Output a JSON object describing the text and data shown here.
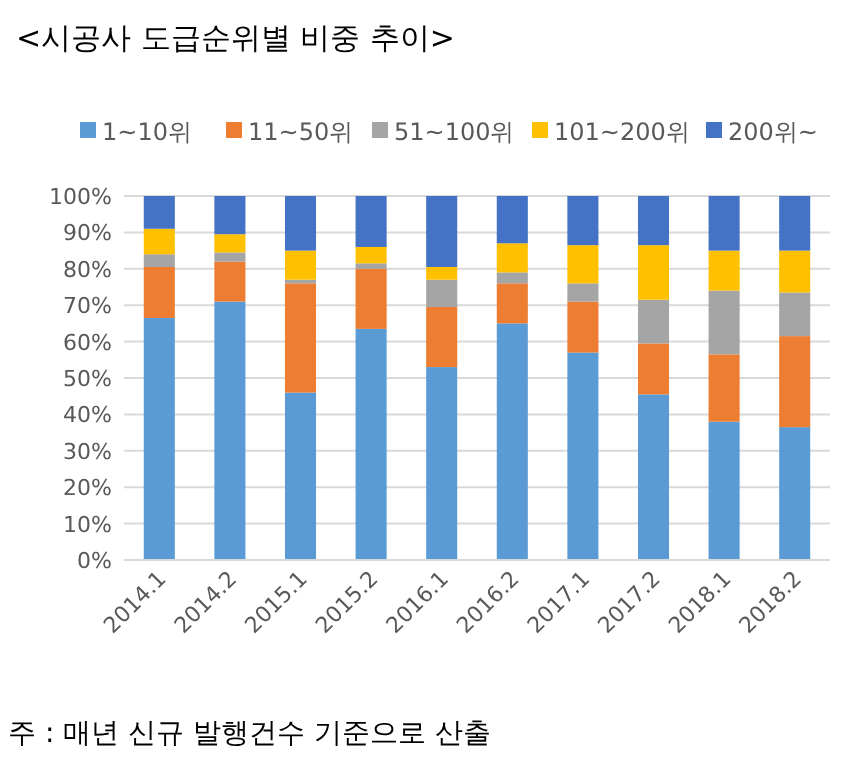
{
  "chart_data": {
    "type": "bar",
    "stacked": true,
    "title": "<시공사 도급순위별 비중 추이>",
    "annotations": [
      "주  : 매년 신규 발행건수 기준으로 산출"
    ],
    "categories": [
      "2014.1",
      "2014.2",
      "2015.1",
      "2015.2",
      "2016.1",
      "2016.2",
      "2017.1",
      "2017.2",
      "2018.1",
      "2018.2"
    ],
    "series": [
      {
        "name": "1~10위",
        "color": "#5b9bd5",
        "values": [
          66.5,
          71,
          46,
          63.5,
          53,
          65,
          57,
          45.5,
          38,
          36.5
        ]
      },
      {
        "name": "11~50위",
        "color": "#ed7d31",
        "values": [
          14,
          11,
          30,
          16.5,
          16.5,
          11,
          14,
          14,
          18.5,
          25
        ]
      },
      {
        "name": "51~100위",
        "color": "#a5a5a5",
        "values": [
          3.5,
          2.5,
          1,
          1.5,
          7.5,
          3,
          5,
          12,
          17.5,
          12
        ]
      },
      {
        "name": "101~200위",
        "color": "#ffc000",
        "values": [
          7,
          5,
          8,
          4.5,
          3.5,
          8,
          10.5,
          15,
          11,
          11.5
        ]
      },
      {
        "name": "200위~",
        "color": "#4472c4",
        "values": [
          9,
          10.5,
          15,
          14,
          19.5,
          13,
          13.5,
          13.5,
          15,
          15
        ]
      }
    ],
    "ylim": [
      0,
      100
    ],
    "yticks": [
      {
        "value": 0,
        "label": "0%"
      },
      {
        "value": 10,
        "label": "10%"
      },
      {
        "value": 20,
        "label": "20%"
      },
      {
        "value": 30,
        "label": "30%"
      },
      {
        "value": 40,
        "label": "40%"
      },
      {
        "value": 50,
        "label": "50%"
      },
      {
        "value": 60,
        "label": "60%"
      },
      {
        "value": 70,
        "label": "70%"
      },
      {
        "value": 80,
        "label": "80%"
      },
      {
        "value": 90,
        "label": "90%"
      },
      {
        "value": 100,
        "label": "100%"
      }
    ],
    "grid": "y",
    "legend": "top"
  }
}
